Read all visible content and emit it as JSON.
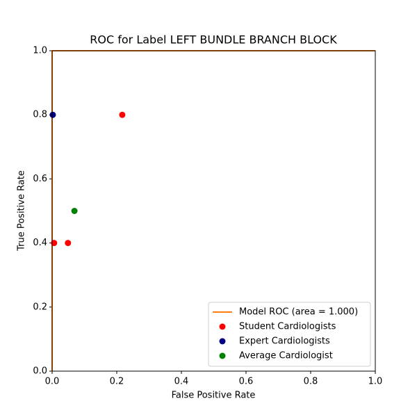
{
  "chart_data": {
    "type": "line",
    "title": "ROC for Label LEFT BUNDLE BRANCH BLOCK",
    "xlabel": "False Positive Rate",
    "ylabel": "True Positive Rate",
    "xlim": [
      0,
      1
    ],
    "ylim": [
      0,
      1
    ],
    "xticks": [
      {
        "value": 0,
        "label": "0.0"
      },
      0.2,
      0.4,
      0.6,
      0.8,
      {
        "value": 1,
        "label": "1.0"
      }
    ],
    "yticks": [
      {
        "value": 0,
        "label": "0.0"
      },
      0.2,
      0.4,
      0.6,
      0.8,
      {
        "value": 1,
        "label": "1.0"
      }
    ],
    "grid": false,
    "legend": "lower right",
    "series": [
      {
        "name": "Model ROC (area = 1.000)",
        "type": "line",
        "color": "#ff7f0e",
        "x": [
          0,
          0,
          1
        ],
        "values": [
          0,
          1,
          1
        ]
      },
      {
        "name": "Student Cardiologists",
        "type": "scatter",
        "color": "#ff0000",
        "x": [
          0.006,
          0.049,
          0.217
        ],
        "values": [
          0.4,
          0.4,
          0.8
        ]
      },
      {
        "name": "Expert Cardiologists",
        "type": "scatter",
        "color": "#000080",
        "x": [
          0.002
        ],
        "values": [
          0.8
        ]
      },
      {
        "name": "Average Cardiologist",
        "type": "scatter",
        "color": "#008000",
        "x": [
          0.069
        ],
        "values": [
          0.5
        ]
      }
    ]
  }
}
